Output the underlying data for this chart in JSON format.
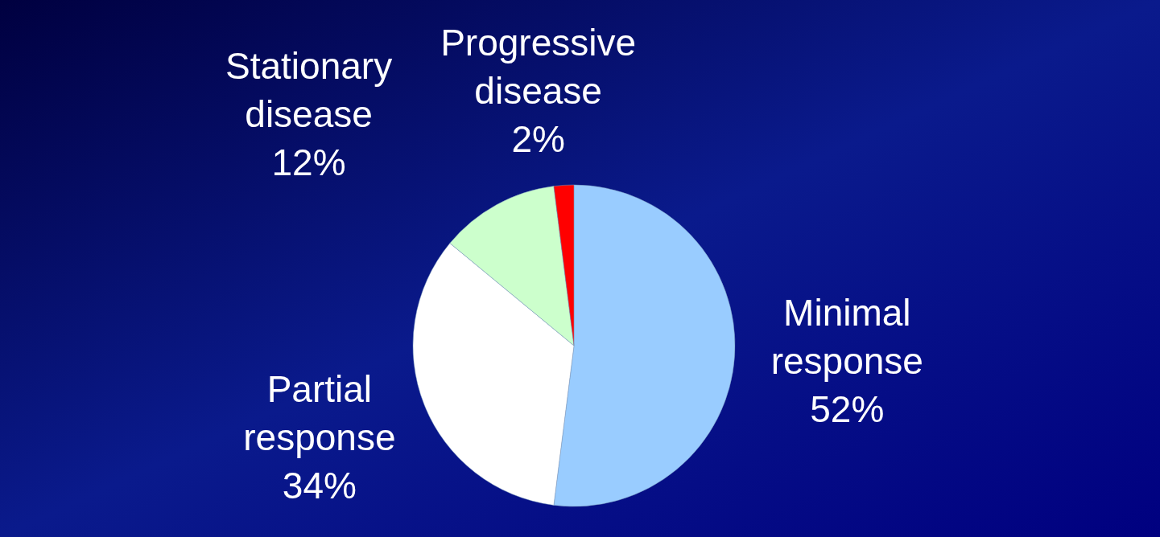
{
  "chart_data": {
    "type": "pie",
    "categories": [
      "Minimal response",
      "Partial response",
      "Stationary disease",
      "Progressive disease"
    ],
    "values": [
      52,
      34,
      12,
      2
    ],
    "colors": [
      "#99ccff",
      "#ffffff",
      "#ccffcc",
      "#ff0000"
    ],
    "value_labels": [
      "52%",
      "34%",
      "12%",
      "2%"
    ]
  }
}
